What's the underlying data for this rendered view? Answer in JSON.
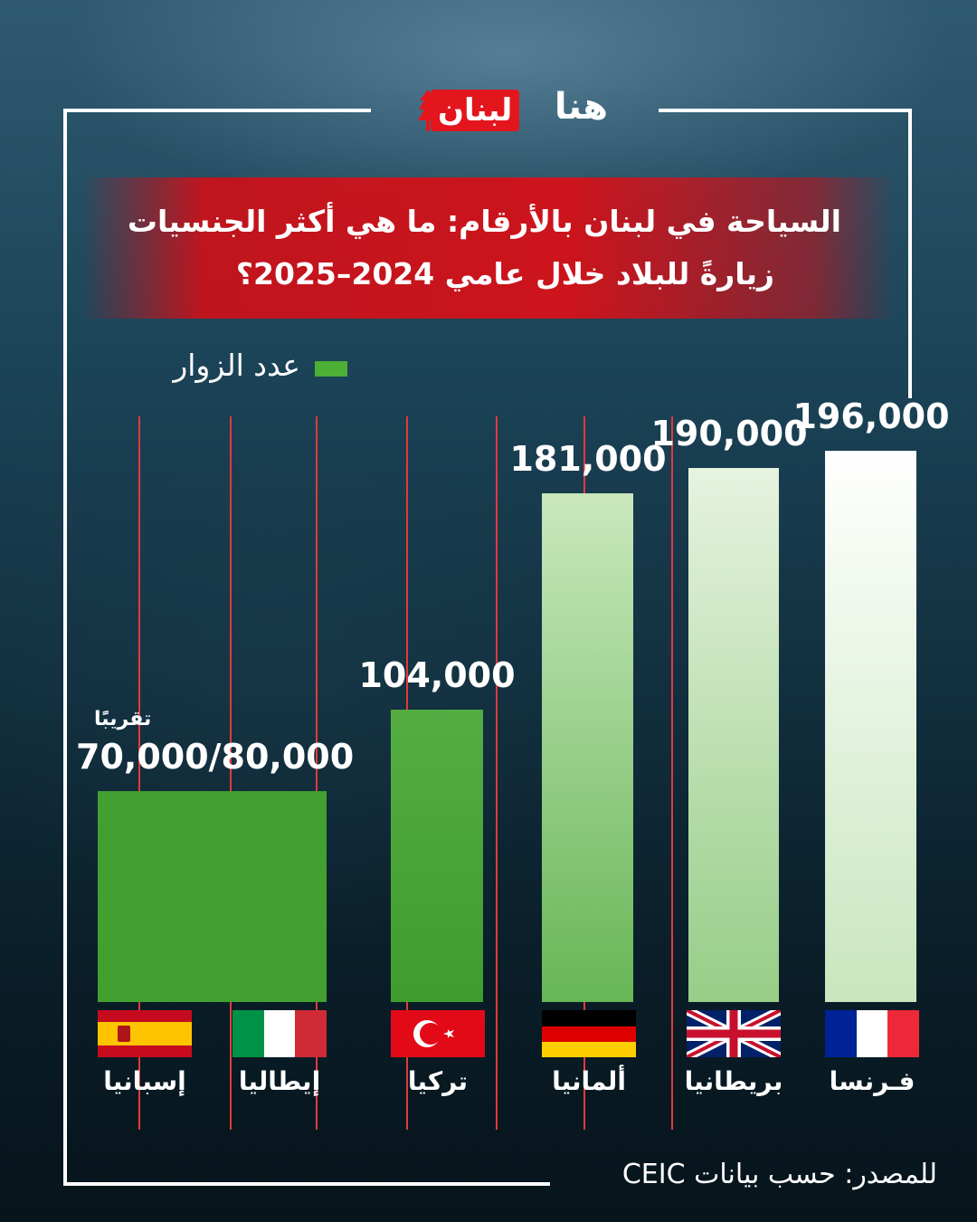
{
  "brand": {
    "logo_text_hana": "هنا",
    "logo_text_lubnan": "لبنان",
    "red": "#e3161d",
    "green": "#4caf36"
  },
  "title": {
    "line1": "السياحة في لبنان بالأرقام: ما هي أكثر الجنسيات",
    "line2": "زيارةً للبلاد خلال عامي 2024–2025؟"
  },
  "legend": {
    "label": "عدد الزوار"
  },
  "approx_note": "تقريبًا",
  "source": "للمصدر: حسب بيانات CEIC",
  "chart_data": {
    "type": "bar",
    "categories": [
      "إسبانيا",
      "إيطاليا",
      "تركيا",
      "ألمانيا",
      "بريطانيا",
      "فـرنسا"
    ],
    "series": [
      {
        "name": "عدد الزوار",
        "values": [
          75000,
          75000,
          104000,
          181000,
          190000,
          196000
        ]
      }
    ],
    "value_labels": [
      "70,000/80,000",
      "104,000",
      "181,000",
      "190,000",
      "196,000"
    ],
    "ylim": [
      0,
      210000
    ],
    "legend_position": "top-left",
    "grid": false
  },
  "flags": [
    {
      "country": "إسبانيا",
      "icon": "spain-flag-icon"
    },
    {
      "country": "إيطاليا",
      "icon": "italy-flag-icon"
    },
    {
      "country": "تركيا",
      "icon": "turkey-flag-icon"
    },
    {
      "country": "ألمانيا",
      "icon": "germany-flag-icon"
    },
    {
      "country": "بريطانيا",
      "icon": "uk-flag-icon"
    },
    {
      "country": "فـرنسا",
      "icon": "france-flag-icon"
    }
  ]
}
